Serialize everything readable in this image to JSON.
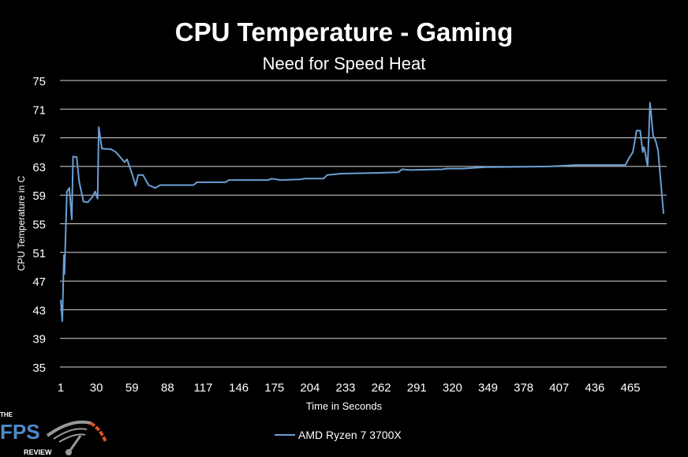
{
  "chart_data": {
    "type": "line",
    "title": "CPU Temperature - Gaming",
    "subtitle": "Need for Speed Heat",
    "xlabel": "Time in Seconds",
    "ylabel": "CPU Temperature in C",
    "xlim": [
      1,
      494
    ],
    "ylim": [
      35,
      75
    ],
    "x_ticks": [
      1,
      30,
      59,
      88,
      117,
      146,
      175,
      204,
      233,
      262,
      291,
      320,
      349,
      378,
      407,
      436,
      465
    ],
    "y_ticks": [
      35,
      39,
      43,
      47,
      51,
      55,
      59,
      63,
      67,
      71,
      75
    ],
    "grid": "horizontal",
    "legend_position": "bottom",
    "colors": {
      "series": "#6a9fd4",
      "grid": "#d9d9d9",
      "background": "#000000"
    },
    "series": [
      {
        "name": "AMD Ryzen 7 3700X",
        "x": [
          1,
          2.3,
          3.6,
          4,
          6,
          8,
          10,
          11,
          14,
          16,
          19.5,
          23,
          27,
          29,
          31,
          32,
          34.5,
          42,
          46,
          53,
          55,
          59,
          62,
          64,
          68,
          72.5,
          78,
          82,
          109,
          112,
          135,
          138,
          170,
          173,
          180,
          196,
          200,
          215,
          218,
          229,
          257,
          276,
          279,
          286,
          312,
          315,
          328,
          347,
          399,
          421,
          461,
          464,
          467,
          470,
          473,
          475,
          476,
          477,
          479,
          481,
          483.5,
          485.5,
          487.5,
          492
        ],
        "values": [
          44.4,
          41.4,
          50.6,
          48,
          59.5,
          60,
          55.6,
          64.4,
          64.3,
          60.9,
          58.1,
          58,
          58.8,
          59.5,
          58.5,
          68.5,
          65.5,
          65.4,
          65,
          63.6,
          64,
          62,
          60.3,
          61.8,
          61.8,
          60.4,
          60,
          60.4,
          60.4,
          60.8,
          60.8,
          61.1,
          61.1,
          61.3,
          61.1,
          61.2,
          61.3,
          61.3,
          61.8,
          62,
          62.1,
          62.2,
          62.6,
          62.5,
          62.6,
          62.7,
          62.7,
          62.9,
          63,
          63.2,
          63.2,
          64.2,
          65,
          68,
          68,
          65,
          65.7,
          65,
          63,
          71.9,
          67.3,
          66.6,
          65.3,
          56.4
        ]
      }
    ]
  },
  "logo": {
    "text_top": "THE",
    "text_main": "FPS",
    "text_bottom": "REVIEW"
  }
}
